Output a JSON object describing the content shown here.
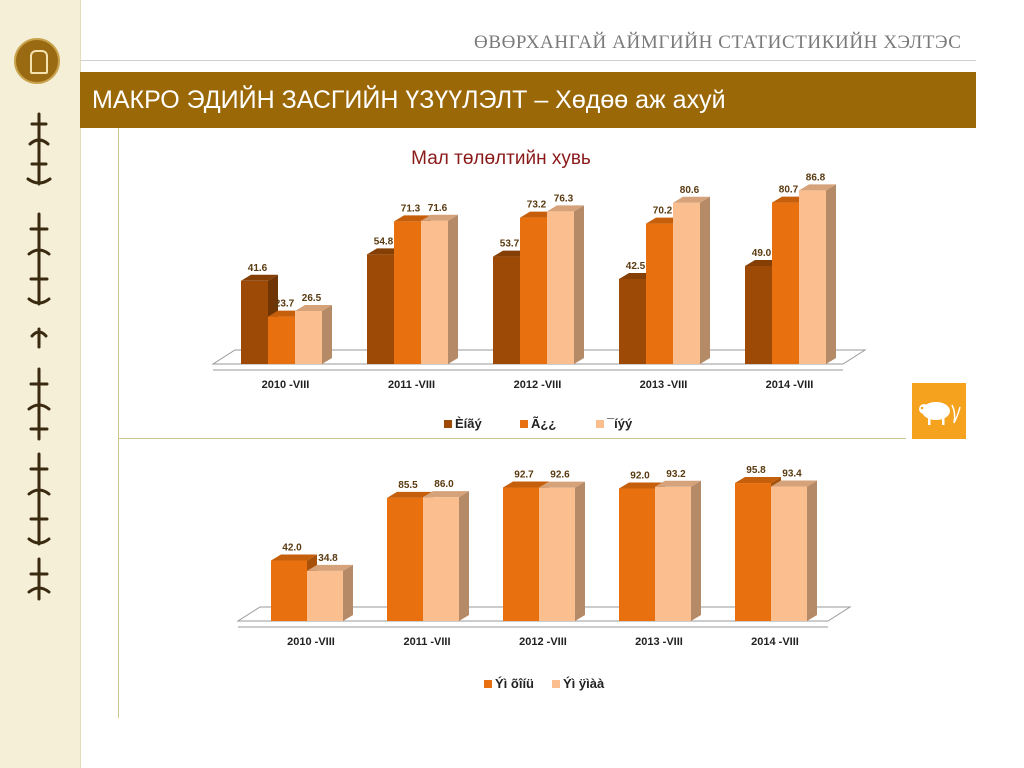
{
  "header": {
    "title": "ӨВӨРХАНГАЙ АЙМГИЙН СТАТИСТИКИЙН ХЭЛТЭС"
  },
  "banner": {
    "title": "МАКРО ЭДИЙН ЗАСГИЙН ҮЗҮҮЛЭЛТ – Хөдөө аж ахуй"
  },
  "icons": {
    "logo": "statistics-emblem-icon",
    "sheep": "sheep-icon",
    "script": "mongolian-script-ornament"
  },
  "colors": {
    "banner": "#9b6808",
    "sidebar": "#f4efd6",
    "dark": "#9c4a06",
    "mid": "#e8700e",
    "light": "#fbbf8f"
  },
  "chart_data": [
    {
      "type": "bar",
      "title": "Мал төлөлтийн хувь",
      "categories": [
        "2010 -VIII",
        "2011 -VIII",
        "2012 -VIII",
        "2013 -VIII",
        "2014 -VIII"
      ],
      "series": [
        {
          "name": "Èíãý",
          "values": [
            41.6,
            54.8,
            53.7,
            42.5,
            49.0
          ]
        },
        {
          "name": "Ã¿¿",
          "values": [
            23.7,
            71.3,
            73.2,
            70.2,
            80.7
          ]
        },
        {
          "name": "¯íýý",
          "values": [
            26.5,
            71.6,
            76.3,
            80.6,
            86.8
          ]
        }
      ],
      "value_labels": [
        [
          "41.6",
          "54.8",
          "53.7",
          "42.5",
          "49.0"
        ],
        [
          "23.7",
          "71.3",
          "73.2",
          "70.2",
          "80.7"
        ],
        [
          "26.5",
          "71.6",
          "76.3",
          "80.6",
          "86.8"
        ]
      ],
      "ylim": [
        0,
        100
      ],
      "legend": "bottom",
      "grid": false
    },
    {
      "type": "bar",
      "title": "",
      "categories": [
        "2010 -VIII",
        "2011 -VIII",
        "2012 -VIII",
        "2013 -VIII",
        "2014 -VIII"
      ],
      "series": [
        {
          "name": "Ýì õîíü",
          "values": [
            42.0,
            85.5,
            92.7,
            92.0,
            95.8
          ]
        },
        {
          "name": "Ýì ÿìàà",
          "values": [
            34.8,
            86.0,
            92.6,
            93.2,
            93.4
          ]
        }
      ],
      "value_labels": [
        [
          "42.0",
          "85.5",
          "92.7",
          "92.0",
          "95.8"
        ],
        [
          "34.8",
          "86.0",
          "92.6",
          "93.2",
          "93.4"
        ]
      ],
      "ylim": [
        0,
        100
      ],
      "legend": "bottom",
      "grid": false
    }
  ]
}
